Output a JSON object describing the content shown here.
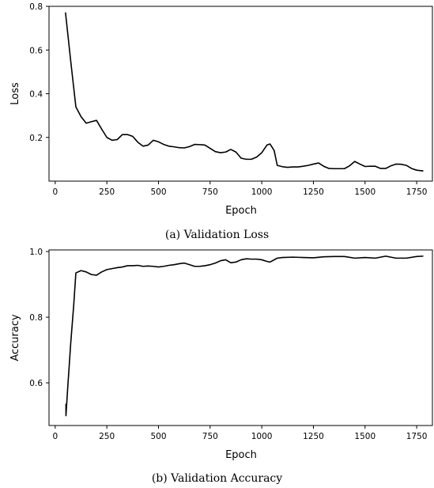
{
  "chart_data": [
    {
      "type": "line",
      "caption": "(a) Validation Loss",
      "xlabel": "Epoch",
      "ylabel": "Loss",
      "xlim": [
        -30,
        1830
      ],
      "ylim": [
        0.0,
        0.8
      ],
      "xticks": [
        0,
        250,
        500,
        750,
        1000,
        1250,
        1500,
        1750
      ],
      "yticks": [
        0.2,
        0.4,
        0.6,
        0.8
      ],
      "ytick_labels": [
        "0.2",
        "0.4",
        "0.6",
        "0.8"
      ],
      "grid": false,
      "color": "#000000",
      "series": [
        {
          "x": [
            50,
            75,
            100,
            125,
            150,
            175,
            200,
            225,
            250,
            275,
            300,
            325,
            350,
            375,
            400,
            425,
            450,
            475,
            500,
            525,
            550,
            575,
            600,
            625,
            650,
            675,
            700,
            725,
            750,
            775,
            800,
            825,
            850,
            875,
            900,
            925,
            950,
            975,
            1000,
            1025,
            1040,
            1060,
            1075,
            1100,
            1125,
            1150,
            1175,
            1200,
            1225,
            1250,
            1275,
            1300,
            1325,
            1350,
            1375,
            1400,
            1425,
            1450,
            1475,
            1500,
            1525,
            1550,
            1575,
            1600,
            1625,
            1650,
            1675,
            1700,
            1725,
            1750,
            1780
          ],
          "y": [
            0.77,
            0.55,
            0.34,
            0.295,
            0.265,
            0.272,
            0.278,
            0.238,
            0.2,
            0.187,
            0.19,
            0.213,
            0.213,
            0.205,
            0.178,
            0.16,
            0.165,
            0.187,
            0.18,
            0.168,
            0.16,
            0.157,
            0.153,
            0.152,
            0.158,
            0.168,
            0.167,
            0.165,
            0.15,
            0.135,
            0.13,
            0.133,
            0.145,
            0.133,
            0.105,
            0.1,
            0.1,
            0.11,
            0.13,
            0.165,
            0.17,
            0.14,
            0.072,
            0.066,
            0.063,
            0.065,
            0.065,
            0.068,
            0.072,
            0.078,
            0.083,
            0.068,
            0.058,
            0.057,
            0.057,
            0.057,
            0.07,
            0.09,
            0.078,
            0.067,
            0.068,
            0.068,
            0.058,
            0.058,
            0.07,
            0.078,
            0.077,
            0.072,
            0.058,
            0.05,
            0.047
          ]
        }
      ]
    },
    {
      "type": "line",
      "caption": "(b) Validation Accuracy",
      "xlabel": "Epoch",
      "ylabel": "Accuracy",
      "xlim": [
        -30,
        1830
      ],
      "ylim": [
        0.47,
        1.005
      ],
      "xticks": [
        0,
        250,
        500,
        750,
        1000,
        1250,
        1500,
        1750
      ],
      "yticks": [
        0.6,
        0.8,
        1.0
      ],
      "ytick_labels": [
        "0.6",
        "0.8",
        "1.0"
      ],
      "grid": false,
      "color": "#000000",
      "series": [
        {
          "x": [
            52,
            52,
            60,
            75,
            90,
            100,
            125,
            150,
            175,
            200,
            225,
            250,
            275,
            300,
            325,
            350,
            375,
            400,
            425,
            450,
            475,
            500,
            525,
            550,
            575,
            600,
            625,
            650,
            675,
            700,
            725,
            750,
            775,
            800,
            825,
            850,
            875,
            900,
            925,
            950,
            975,
            1000,
            1025,
            1040,
            1075,
            1100,
            1150,
            1200,
            1250,
            1300,
            1350,
            1400,
            1450,
            1500,
            1550,
            1600,
            1650,
            1700,
            1750,
            1780
          ],
          "y": [
            0.535,
            0.5,
            0.58,
            0.72,
            0.84,
            0.935,
            0.942,
            0.938,
            0.93,
            0.928,
            0.938,
            0.945,
            0.948,
            0.951,
            0.953,
            0.957,
            0.957,
            0.958,
            0.955,
            0.956,
            0.955,
            0.953,
            0.955,
            0.958,
            0.96,
            0.963,
            0.965,
            0.96,
            0.955,
            0.955,
            0.957,
            0.96,
            0.965,
            0.972,
            0.975,
            0.966,
            0.968,
            0.975,
            0.978,
            0.977,
            0.977,
            0.975,
            0.97,
            0.968,
            0.98,
            0.982,
            0.983,
            0.982,
            0.981,
            0.984,
            0.985,
            0.985,
            0.98,
            0.982,
            0.98,
            0.986,
            0.98,
            0.98,
            0.985,
            0.986
          ]
        }
      ]
    }
  ]
}
